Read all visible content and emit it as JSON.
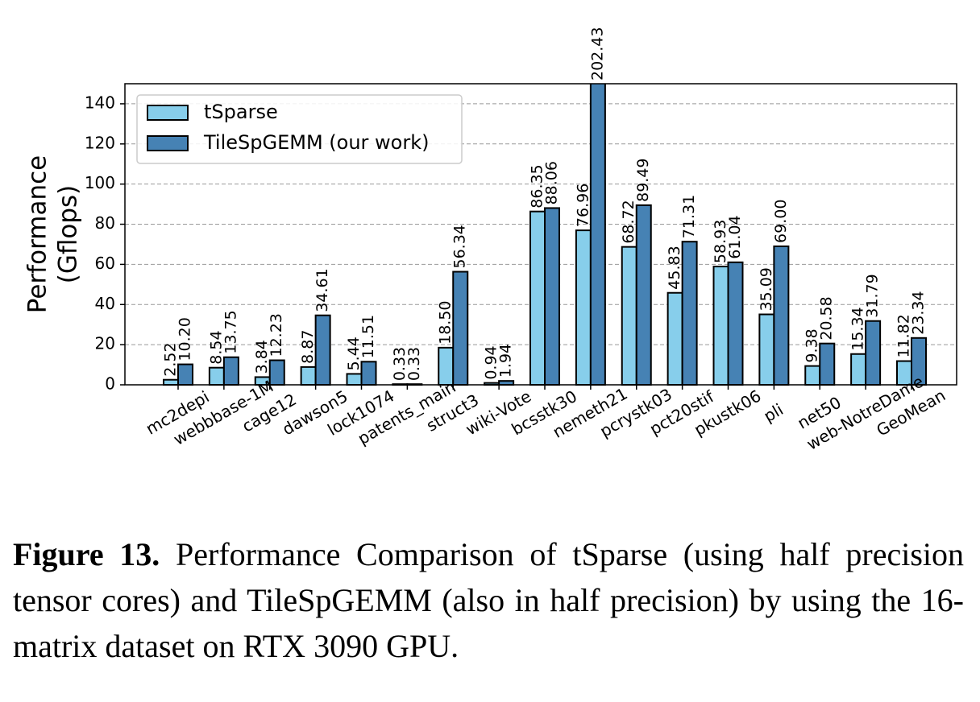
{
  "chart_data": {
    "type": "bar",
    "ylabel_lines": [
      "Performance",
      "(Gflops)"
    ],
    "categories": [
      "mc2depi",
      "webbbase-1M",
      "cage12",
      "dawson5",
      "lock1074",
      "patents_main",
      "struct3",
      "wiki-Vote",
      "bcsstk30",
      "nemeth21",
      "pcrystk03",
      "pct20stif",
      "pkustk06",
      "pli",
      "net50",
      "web-NotreDame",
      "GeoMean"
    ],
    "series": [
      {
        "name": "tSparse",
        "color": "#87ceeb",
        "values": [
          2.52,
          8.54,
          3.84,
          8.87,
          5.44,
          0.33,
          18.5,
          0.94,
          86.35,
          76.96,
          68.72,
          45.83,
          58.93,
          35.09,
          9.38,
          15.34,
          11.82
        ],
        "value_labels": [
          "2.52",
          "8.54",
          "3.84",
          "8.87",
          "5.44",
          "0.33",
          "18.50",
          "0.94",
          "86.35",
          "76.96",
          "68.72",
          "45.83",
          "58.93",
          "35.09",
          "9.38",
          "15.34",
          "11.82"
        ]
      },
      {
        "name": "TileSpGEMM (our work)",
        "color": "#4682b4",
        "values": [
          10.2,
          13.75,
          12.23,
          34.61,
          11.51,
          0.33,
          56.34,
          1.94,
          88.06,
          202.43,
          89.49,
          71.31,
          61.04,
          69.0,
          20.58,
          31.79,
          23.34
        ],
        "value_labels": [
          "10.20",
          "13.75",
          "12.23",
          "34.61",
          "11.51",
          "0.33",
          "56.34",
          "1.94",
          "88.06",
          "202.43",
          "89.49",
          "71.31",
          "61.04",
          "69.00",
          "20.58",
          "31.79",
          "23.34"
        ]
      }
    ],
    "ylim": [
      0,
      150
    ],
    "yticks": [
      0,
      20,
      40,
      60,
      80,
      100,
      120,
      140
    ],
    "grid": true,
    "legend": "upper left"
  },
  "caption": {
    "label": "Figure 13.",
    "text": "Performance Comparison of tSparse (using half precision tensor cores) and TileSpGEMM (also in half precision) by using the 16-matrix dataset on RTX 3090 GPU."
  }
}
